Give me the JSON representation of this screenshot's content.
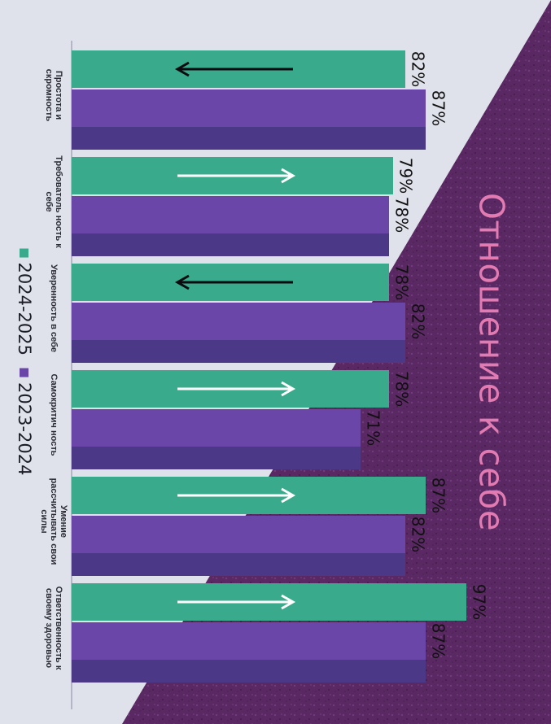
{
  "title": "Отношение к себе",
  "colors": {
    "series_2024": "#3aaa8c",
    "series_2023": "#6a46a8",
    "series_2023_shade": "#4b3886",
    "background_purple": "#5c2a66",
    "title_pink": "#e27bb2"
  },
  "legend": [
    {
      "name": "2024-2025",
      "color": "#3aaa8c"
    },
    {
      "name": "2023-2024",
      "color": "#6a46a8"
    }
  ],
  "chart_data": {
    "type": "bar",
    "orientation": "horizontal",
    "title": "Отношение к себе",
    "categories": [
      "Простота и скромность",
      "Требователь ность к себе",
      "Уверенность в себе",
      "Самокритич ность",
      "Умение рассчитывать свои силы",
      "Ответственность к своему здоровью"
    ],
    "series": [
      {
        "name": "2024-2025",
        "values": [
          82,
          79,
          78,
          78,
          87,
          97
        ],
        "labels": [
          "82%",
          "79%",
          "78%",
          "78%",
          "87%",
          "97%"
        ]
      },
      {
        "name": "2023-2024",
        "values": [
          87,
          78,
          82,
          71,
          82,
          87
        ],
        "labels": [
          "87%",
          "78%",
          "82%",
          "71%",
          "82%",
          "87%"
        ]
      }
    ],
    "trend_arrows": [
      "down",
      "up",
      "down",
      "up",
      "up",
      "up"
    ],
    "xlim": [
      0,
      100
    ],
    "grid": false,
    "legend_position": "bottom"
  }
}
